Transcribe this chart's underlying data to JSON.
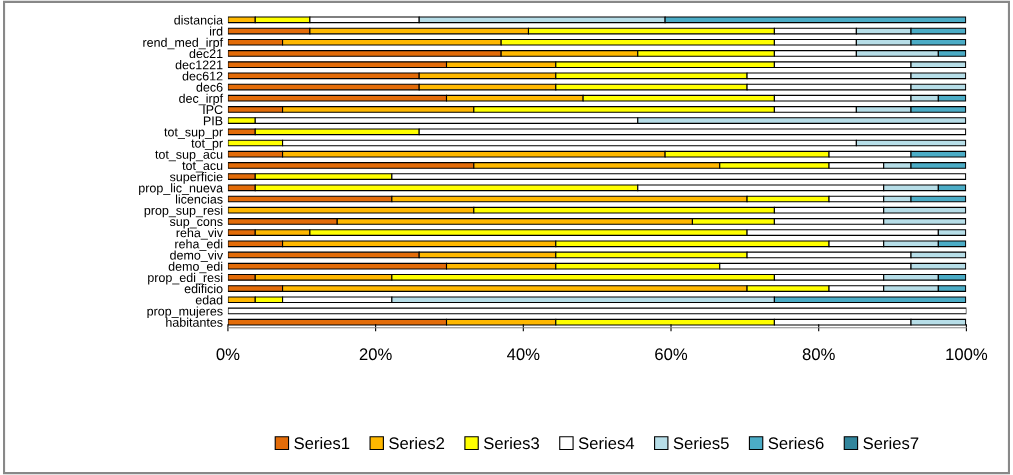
{
  "chart_data": {
    "type": "bar",
    "orientation": "horizontal",
    "stacked": true,
    "categories": [
      "distancia",
      "ird",
      "rend_med_irpf",
      "dec21",
      "dec1221",
      "dec612",
      "dec6",
      "dec_irpf",
      "IPC",
      "PIB",
      "tot_sup_pr",
      "tot_pr",
      "tot_sup_acu",
      "tot_acu",
      "superficie",
      "prop_lic_nueva",
      "licencias",
      "prop_sup_resi",
      "sup_cons",
      "reha_viv",
      "reha_edi",
      "demo_viv",
      "demo_edi",
      "prop_edi_resi",
      "edificio",
      "edad",
      "prop_mujeres",
      "habitantes"
    ],
    "series": [
      {
        "name": "Series1",
        "color": "#e36c09",
        "values": [
          0,
          11.1,
          7.4,
          37.0,
          29.6,
          25.9,
          25.9,
          29.6,
          7.4,
          0,
          3.7,
          0,
          7.4,
          33.3,
          3.7,
          3.7,
          22.2,
          0,
          14.8,
          3.7,
          7.4,
          25.9,
          29.6,
          3.7,
          7.4,
          0,
          0,
          29.6
        ]
      },
      {
        "name": "Series2",
        "color": "#ffb800",
        "values": [
          3.7,
          29.6,
          29.6,
          18.5,
          14.8,
          18.5,
          18.5,
          18.5,
          25.9,
          0,
          0,
          0,
          51.8,
          33.3,
          0,
          0,
          48.1,
          33.3,
          48.1,
          7.4,
          37.0,
          18.5,
          14.8,
          18.5,
          62.9,
          3.7,
          0,
          14.8
        ]
      },
      {
        "name": "Series3",
        "color": "#ffff00",
        "values": [
          7.4,
          33.3,
          37.0,
          18.5,
          29.6,
          25.9,
          25.9,
          25.9,
          40.7,
          3.7,
          22.2,
          7.4,
          22.2,
          14.8,
          18.5,
          51.8,
          11.1,
          40.7,
          11.1,
          59.2,
          37.0,
          25.9,
          22.2,
          51.8,
          11.1,
          3.7,
          0,
          29.6
        ]
      },
      {
        "name": "Series4",
        "color": "#ffffff",
        "values": [
          14.8,
          11.1,
          11.1,
          11.1,
          18.5,
          22.2,
          22.2,
          18.5,
          11.1,
          51.8,
          74.0,
          77.7,
          11.1,
          7.4,
          77.7,
          33.3,
          7.4,
          14.8,
          14.8,
          25.9,
          7.4,
          22.2,
          25.9,
          14.8,
          7.4,
          14.8,
          100,
          18.5
        ]
      },
      {
        "name": "Series5",
        "color": "#b7dee8",
        "values": [
          33.3,
          7.4,
          7.4,
          11.1,
          7.4,
          7.4,
          7.4,
          3.7,
          7.4,
          44.4,
          0,
          14.8,
          0,
          3.7,
          0,
          7.4,
          3.7,
          11.1,
          11.1,
          3.7,
          7.4,
          7.4,
          7.4,
          7.4,
          7.4,
          51.8,
          0,
          7.4
        ]
      },
      {
        "name": "Series6",
        "color": "#4bacc6",
        "values": [
          40.7,
          7.4,
          7.4,
          3.7,
          0,
          0,
          0,
          3.7,
          7.4,
          0,
          0,
          0,
          7.4,
          7.4,
          0,
          3.7,
          7.4,
          0,
          0,
          0,
          3.7,
          0,
          0,
          3.7,
          3.7,
          25.9,
          0,
          0
        ]
      },
      {
        "name": "Series7",
        "color": "#31859c",
        "values": [
          0,
          0,
          0,
          0,
          0,
          0,
          0,
          0,
          0,
          0,
          0,
          0,
          0,
          0,
          0,
          0,
          0,
          0,
          0,
          0,
          0,
          0,
          0,
          0,
          0,
          0,
          0,
          0
        ]
      }
    ],
    "xlim": [
      0,
      100
    ],
    "xticks": [
      {
        "value": 0,
        "label": "0%"
      },
      {
        "value": 20,
        "label": "20%"
      },
      {
        "value": 40,
        "label": "40%"
      },
      {
        "value": 60,
        "label": "60%"
      },
      {
        "value": 80,
        "label": "80%"
      },
      {
        "value": 100,
        "label": "100%"
      }
    ],
    "grid": false,
    "legend": "bottom"
  }
}
